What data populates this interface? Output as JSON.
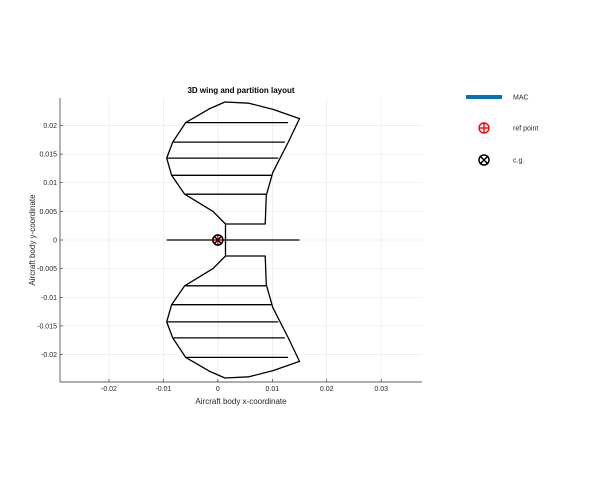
{
  "chart_data": {
    "type": "line",
    "title": "3D wing and partition layout",
    "xlabel": "Aircraft body x-coordinate",
    "ylabel": "Aircraft body y-coordinate",
    "xlim": [
      -0.029,
      0.0375
    ],
    "ylim": [
      -0.0248,
      0.0248
    ],
    "grid": true,
    "legend_placement": "outside-right",
    "x_ticks": [
      {
        "value": -0.02,
        "label": "-0.02"
      },
      {
        "value": -0.01,
        "label": "-0.01"
      },
      {
        "value": 0,
        "label": "0"
      },
      {
        "value": 0.01,
        "label": "0.01"
      },
      {
        "value": 0.02,
        "label": "0.02"
      },
      {
        "value": 0.03,
        "label": "0.03"
      }
    ],
    "y_ticks": [
      {
        "value": 0.02,
        "label": "0.02"
      },
      {
        "value": 0.015,
        "label": "0.015"
      },
      {
        "value": 0.01,
        "label": "0.01"
      },
      {
        "value": 0.005,
        "label": "0.005"
      },
      {
        "value": 0,
        "label": "0"
      },
      {
        "value": -0.005,
        "label": "-0.005"
      },
      {
        "value": -0.01,
        "label": "-0.01"
      },
      {
        "value": -0.015,
        "label": "-0.015"
      },
      {
        "value": -0.02,
        "label": "-0.02"
      }
    ],
    "wing_outline_upper": [
      [
        0.0014,
        0.0028
      ],
      [
        -0.0009,
        0.005
      ],
      [
        -0.0061,
        0.008
      ],
      [
        -0.0085,
        0.0113
      ],
      [
        -0.0094,
        0.0143
      ],
      [
        -0.0083,
        0.0171
      ],
      [
        -0.0059,
        0.0205
      ],
      [
        -0.0016,
        0.0229
      ],
      [
        0.0013,
        0.0241
      ],
      [
        0.0057,
        0.0239
      ],
      [
        0.0102,
        0.0228
      ],
      [
        0.015,
        0.0212
      ],
      [
        0.013,
        0.0172
      ],
      [
        0.0101,
        0.0118
      ],
      [
        0.0089,
        0.0078
      ],
      [
        0.0087,
        0.0028
      ],
      [
        0.0014,
        0.0028
      ]
    ],
    "wing_outline_lower": [
      [
        0.0014,
        -0.0028
      ],
      [
        -0.0009,
        -0.005
      ],
      [
        -0.0061,
        -0.008
      ],
      [
        -0.0085,
        -0.0113
      ],
      [
        -0.0094,
        -0.0143
      ],
      [
        -0.0083,
        -0.0171
      ],
      [
        -0.0059,
        -0.0205
      ],
      [
        -0.0016,
        -0.0229
      ],
      [
        0.0013,
        -0.0241
      ],
      [
        0.0057,
        -0.0239
      ],
      [
        0.0102,
        -0.0228
      ],
      [
        0.015,
        -0.0212
      ],
      [
        0.013,
        -0.0172
      ],
      [
        0.0101,
        -0.0118
      ],
      [
        0.0089,
        -0.0078
      ],
      [
        0.0087,
        -0.0028
      ],
      [
        0.0014,
        -0.0028
      ]
    ],
    "partition_lines": [
      [
        [
          -0.0059,
          0.0205
        ],
        [
          0.0129,
          0.0205
        ]
      ],
      [
        [
          -0.0083,
          0.0171
        ],
        [
          0.0123,
          0.0171
        ]
      ],
      [
        [
          -0.0094,
          0.0143
        ],
        [
          0.0111,
          0.0143
        ]
      ],
      [
        [
          -0.0085,
          0.0113
        ],
        [
          0.01,
          0.0113
        ]
      ],
      [
        [
          -0.0059,
          0.008
        ],
        [
          0.0089,
          0.008
        ]
      ],
      [
        [
          -0.0059,
          -0.008
        ],
        [
          0.0089,
          -0.008
        ]
      ],
      [
        [
          -0.0085,
          -0.0113
        ],
        [
          0.01,
          -0.0113
        ]
      ],
      [
        [
          -0.0094,
          -0.0143
        ],
        [
          0.0111,
          -0.0143
        ]
      ],
      [
        [
          -0.0083,
          -0.0171
        ],
        [
          0.0123,
          -0.0171
        ]
      ],
      [
        [
          -0.0059,
          -0.0205
        ],
        [
          0.0129,
          -0.0205
        ]
      ]
    ],
    "center_spar": [
      [
        0.0014,
        0.0028
      ],
      [
        0.0014,
        -0.0028
      ]
    ],
    "horizontal_line": [
      [
        -0.0094,
        0.0
      ],
      [
        0.015,
        0.0
      ]
    ],
    "mac_line": [
      [
        0.0004,
        0.0
      ],
      [
        0.0004,
        0.0
      ]
    ],
    "ref_point": [
      0.0,
      0.0
    ],
    "cg_point": [
      0.0,
      0.0
    ],
    "legend": [
      {
        "label": "MAC",
        "marker": "line",
        "color": "#0072bd"
      },
      {
        "label": "ref point",
        "marker": "circle-plus",
        "color": "#ff0000"
      },
      {
        "label": "c.g.",
        "marker": "circle-x",
        "color": "#000000"
      }
    ]
  }
}
